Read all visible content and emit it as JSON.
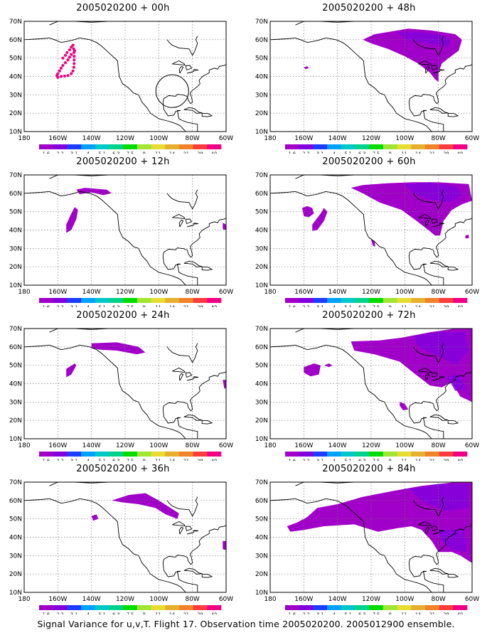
{
  "panels": [
    {
      "title": "2005020200 + 00h",
      "hour": "00h"
    },
    {
      "title": "2005020200 + 48h",
      "hour": "48h"
    },
    {
      "title": "2005020200 + 12h",
      "hour": "12h"
    },
    {
      "title": "2005020200 + 60h",
      "hour": "60h"
    },
    {
      "title": "2005020200 + 24h",
      "hour": "24h"
    },
    {
      "title": "2005020200 + 72h",
      "hour": "72h"
    },
    {
      "title": "2005020200 + 36h",
      "hour": "36h"
    },
    {
      "title": "2005020200 + 84h",
      "hour": "84h"
    }
  ],
  "map": {
    "lon_labels": [
      "180",
      "160W",
      "140W",
      "120W",
      "100W",
      "80W",
      "60W"
    ],
    "lat_labels": [
      "10N",
      "20N",
      "30N",
      "40N",
      "50N",
      "60N",
      "70N"
    ],
    "lon_range": [
      -180,
      -60
    ],
    "lat_range": [
      10,
      70
    ]
  },
  "colorbar": {
    "labels": [
      "1.6",
      "2.2",
      "3.1",
      "4",
      "5.1",
      "6.3",
      "7.5",
      "9",
      "11",
      "14",
      "21",
      "29",
      "40"
    ],
    "colors": [
      "#a000c8",
      "#8200dc",
      "#1e3cff",
      "#00a0ff",
      "#00c8c8",
      "#00d28c",
      "#00dc00",
      "#a0e632",
      "#e6dc32",
      "#e6af2d",
      "#f08228",
      "#fa3c3c",
      "#f00082"
    ]
  },
  "shading_color": "#a000c8",
  "shading_dark_color": "#8200dc",
  "track_color": "#f00082",
  "caption": "Signal Variance for u,v,T. Flight 17. Observation time 2005020200. 2005012900 ensemble."
}
